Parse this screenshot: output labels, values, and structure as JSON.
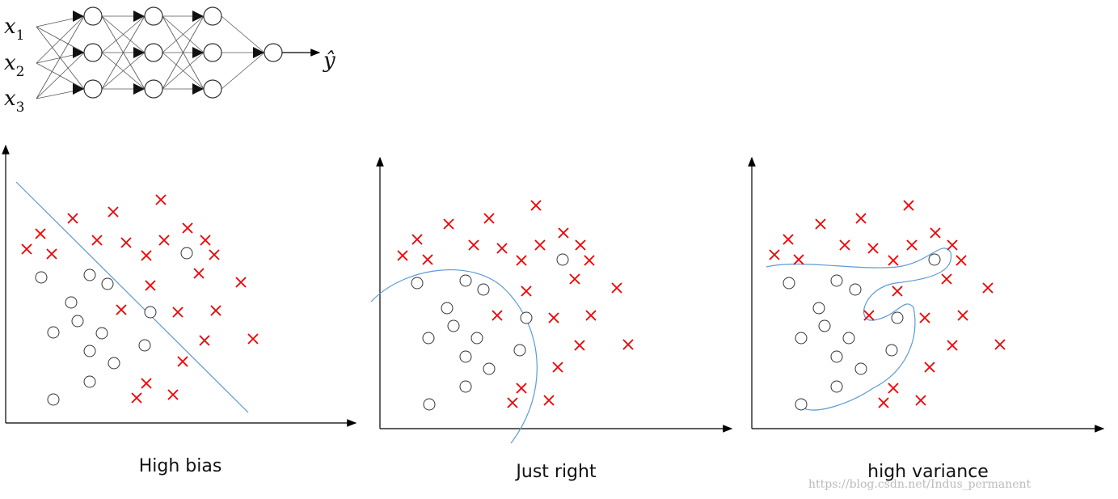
{
  "network": {
    "inputs": [
      {
        "base": "x",
        "sub": "1"
      },
      {
        "base": "x",
        "sub": "2"
      },
      {
        "base": "x",
        "sub": "3"
      }
    ],
    "output": "ŷ"
  },
  "panels": [
    {
      "caption": "High bias"
    },
    {
      "caption": "Just right"
    },
    {
      "caption": "high variance"
    }
  ],
  "watermark": "https://blog.csdn.net/Indus_permanent"
}
